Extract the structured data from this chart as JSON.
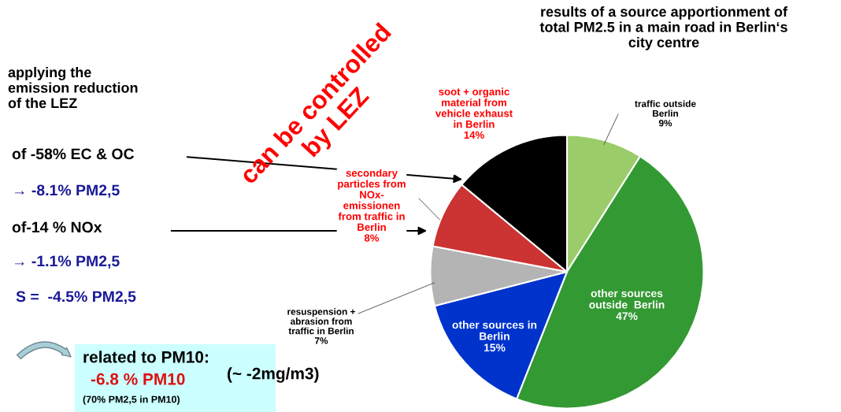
{
  "chart_data": {
    "type": "pie",
    "title": "results of a source apportionment of\ntotal PM2.5 in a main road in Berlin‘s\ncity centre",
    "categories": [
      "traffic outside\nBerlin",
      "other sources\noutside  Berlin",
      "other sources in\nBerlin",
      "resuspension +\nabrasion from\ntraffic in Berlin",
      "secondary\nparticles from\nNOx-\nemissionen\nfrom traffic in\nBerlin",
      "soot + organic\nmaterial from\nvehicle exhaust\nin Berlin"
    ],
    "values": [
      9,
      47,
      15,
      7,
      8,
      14
    ],
    "value_labels": [
      "9%",
      "47%",
      "15%",
      "7%",
      "8%",
      "14%"
    ],
    "colors": [
      "#9acd6a",
      "#339933",
      "#0033cc",
      "#b4b4b4",
      "#cc3333",
      "#000000"
    ],
    "annotations": [
      "applying the\nemission reduction\nof the LEZ",
      "of -58% EC & OC",
      "→ -8.1% PM2,5",
      "of-14 % NOx",
      "→ -1.1% PM2,5",
      "S =  -4.5% PM2,5",
      "can be controlled\nby LEZ",
      "related to PM10:",
      "-6.8 % PM10",
      "(~ -2mg/m3)",
      "(70% PM2,5 in PM10)"
    ]
  }
}
